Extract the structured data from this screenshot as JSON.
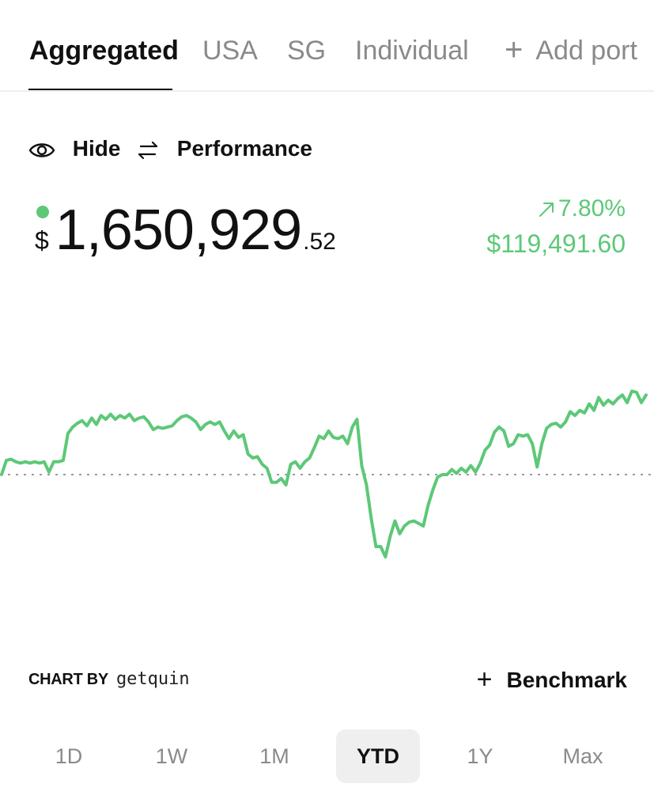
{
  "tabs": [
    {
      "label": "Aggregated",
      "active": true
    },
    {
      "label": "USA",
      "active": false
    },
    {
      "label": "SG",
      "active": false
    },
    {
      "label": "Individual",
      "active": false
    }
  ],
  "add_portfolio_label": "Add port",
  "controls": {
    "hide_label": "Hide",
    "performance_label": "Performance"
  },
  "portfolio": {
    "currency": "$",
    "value_main": "1,650,929",
    "value_cents": ".52",
    "change_percent": "7.80%",
    "change_absolute": "$119,491.60"
  },
  "footer": {
    "chart_by_label": "CHART BY",
    "chart_by_brand": "getquin",
    "benchmark_label": "Benchmark"
  },
  "periods": [
    {
      "label": "1D",
      "active": false
    },
    {
      "label": "1W",
      "active": false
    },
    {
      "label": "1M",
      "active": false
    },
    {
      "label": "YTD",
      "active": true
    },
    {
      "label": "1Y",
      "active": false
    },
    {
      "label": "Max",
      "active": false
    }
  ],
  "colors": {
    "positive": "#5dc878",
    "text": "#111111",
    "muted": "#8a8a8a"
  },
  "chart_data": {
    "type": "line",
    "baseline": 0,
    "ylim": [
      -8.0,
      8.0
    ],
    "values": [
      0.0,
      1.1,
      1.2,
      1.0,
      0.9,
      1.0,
      0.9,
      1.0,
      0.9,
      1.0,
      0.2,
      1.0,
      1.0,
      1.1,
      3.2,
      3.7,
      4.0,
      4.2,
      3.8,
      4.4,
      3.9,
      4.6,
      4.3,
      4.7,
      4.3,
      4.6,
      4.4,
      4.7,
      4.2,
      4.4,
      4.5,
      4.1,
      3.5,
      3.7,
      3.6,
      3.7,
      3.8,
      4.2,
      4.5,
      4.6,
      4.4,
      4.1,
      3.5,
      3.9,
      4.1,
      3.9,
      4.1,
      3.4,
      2.8,
      3.4,
      2.9,
      3.1,
      1.6,
      1.3,
      1.4,
      0.8,
      0.5,
      -0.6,
      -0.6,
      -0.3,
      -0.8,
      0.8,
      1.0,
      0.5,
      1.0,
      1.3,
      2.1,
      3.0,
      2.8,
      3.4,
      2.9,
      2.8,
      3.0,
      2.4,
      3.7,
      4.3,
      0.7,
      -0.8,
      -3.4,
      -5.6,
      -5.6,
      -6.4,
      -4.8,
      -3.6,
      -4.6,
      -4.0,
      -3.7,
      -3.6,
      -3.8,
      -4.0,
      -2.4,
      -1.2,
      -0.2,
      0.0,
      0.0,
      0.4,
      0.1,
      0.5,
      0.2,
      0.7,
      0.2,
      0.9,
      1.9,
      2.3,
      3.3,
      3.7,
      3.4,
      2.2,
      2.4,
      3.1,
      3.0,
      3.1,
      2.4,
      0.6,
      2.4,
      3.6,
      3.9,
      4.0,
      3.7,
      4.1,
      4.9,
      4.6,
      5.0,
      4.8,
      5.5,
      5.0,
      6.0,
      5.4,
      5.8,
      5.5,
      5.9,
      6.2,
      5.6,
      6.5,
      6.4,
      5.6,
      6.2
    ]
  }
}
